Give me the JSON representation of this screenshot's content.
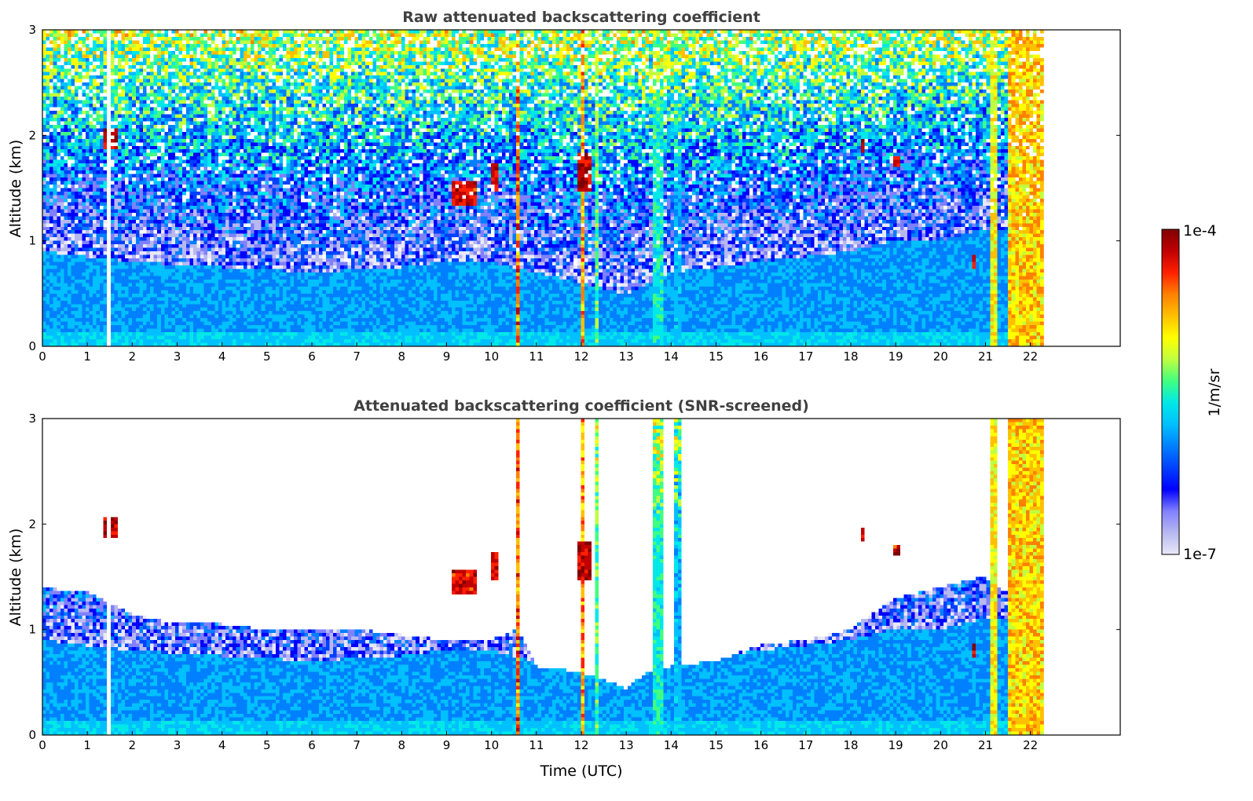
{
  "chart_data": [
    {
      "type": "heatmap",
      "title": "Raw attenuated backscattering coefficient",
      "xlabel": "",
      "ylabel": "Altitude (km)",
      "xlim": [
        0,
        24
      ],
      "ylim": [
        0,
        3
      ],
      "xticks": [
        "0",
        "1",
        "2",
        "3",
        "4",
        "5",
        "6",
        "7",
        "8",
        "9",
        "10",
        "11",
        "12",
        "13",
        "14",
        "15",
        "16",
        "17",
        "18",
        "19",
        "20",
        "21",
        "22"
      ],
      "yticks": [
        "0",
        "1",
        "2",
        "3"
      ],
      "data_end_time": 22.3,
      "gaps": [
        {
          "from": 1.45,
          "to": 1.55
        }
      ],
      "value_scale": "log",
      "value_range": [
        1e-07,
        0.0001
      ],
      "features": [
        {
          "kind": "boundary_layer",
          "x": [
            0,
            2,
            4,
            6,
            8,
            9,
            10,
            11,
            12,
            13,
            14,
            15,
            16,
            17,
            18,
            19,
            20,
            21,
            22.3
          ],
          "top_km": [
            0.9,
            0.8,
            0.75,
            0.7,
            0.75,
            0.8,
            0.8,
            0.7,
            0.6,
            0.5,
            0.7,
            0.75,
            0.8,
            0.85,
            0.9,
            1.0,
            1.0,
            1.1,
            1.1
          ]
        },
        {
          "kind": "cloud_column",
          "x_from": 10.55,
          "x_to": 10.65,
          "intensity": 0.9
        },
        {
          "kind": "cloud_column",
          "x_from": 12.0,
          "x_to": 12.1,
          "intensity": 0.85
        },
        {
          "kind": "cloud_column",
          "x_from": 12.3,
          "x_to": 12.4,
          "intensity": 0.6
        },
        {
          "kind": "cloud_column",
          "x_from": 13.6,
          "x_to": 13.85,
          "intensity": 0.55
        },
        {
          "kind": "cloud_column",
          "x_from": 14.1,
          "x_to": 14.2,
          "intensity": 0.45
        },
        {
          "kind": "cloud_column",
          "x_from": 21.1,
          "x_to": 21.3,
          "intensity": 0.75
        },
        {
          "kind": "cloud_column",
          "x_from": 21.5,
          "x_to": 22.3,
          "intensity": 0.8
        },
        {
          "kind": "cloud_patch",
          "x": 1.5,
          "y_km": 1.95,
          "w": 0.3,
          "h": 0.2,
          "intensity": 1.0
        },
        {
          "kind": "cloud_patch",
          "x": 9.4,
          "y_km": 1.45,
          "w": 0.5,
          "h": 0.25,
          "intensity": 0.95
        },
        {
          "kind": "cloud_patch",
          "x": 10.05,
          "y_km": 1.6,
          "w": 0.15,
          "h": 0.25,
          "intensity": 0.95
        },
        {
          "kind": "cloud_patch",
          "x": 12.05,
          "y_km": 1.65,
          "w": 0.3,
          "h": 0.35,
          "intensity": 1.0
        },
        {
          "kind": "cloud_patch",
          "x": 18.3,
          "y_km": 1.9,
          "w": 0.1,
          "h": 0.12,
          "intensity": 1.0
        },
        {
          "kind": "cloud_patch",
          "x": 19.05,
          "y_km": 1.75,
          "w": 0.15,
          "h": 0.12,
          "intensity": 0.95
        },
        {
          "kind": "cloud_patch",
          "x": 20.75,
          "y_km": 0.8,
          "w": 0.08,
          "h": 0.15,
          "intensity": 1.0
        }
      ]
    },
    {
      "type": "heatmap",
      "title": "Attenuated backscattering coefficient (SNR-screened)",
      "xlabel": "Time (UTC)",
      "ylabel": "Altitude (km)",
      "xlim": [
        0,
        24
      ],
      "ylim": [
        0,
        3
      ],
      "xticks": [
        "0",
        "1",
        "2",
        "3",
        "4",
        "5",
        "6",
        "7",
        "8",
        "9",
        "10",
        "11",
        "12",
        "13",
        "14",
        "15",
        "16",
        "17",
        "18",
        "19",
        "20",
        "21",
        "22"
      ],
      "yticks": [
        "0",
        "1",
        "2",
        "3"
      ],
      "data_end_time": 22.3,
      "gaps": [
        {
          "from": 1.45,
          "to": 1.55
        }
      ],
      "value_scale": "log",
      "value_range": [
        1e-07,
        0.0001
      ],
      "screen_top_km": {
        "x": [
          0,
          1,
          2,
          3,
          4,
          5,
          6,
          7,
          8,
          9,
          10,
          10.6,
          11,
          12,
          13,
          13.5,
          14,
          15,
          16,
          17,
          18,
          19,
          20,
          21,
          22.3
        ],
        "y": [
          1.4,
          1.35,
          1.15,
          1.05,
          1.05,
          1.0,
          1.0,
          1.0,
          0.95,
          0.9,
          0.9,
          1.0,
          0.65,
          0.6,
          0.45,
          0.6,
          0.65,
          0.7,
          0.85,
          0.9,
          1.0,
          1.3,
          1.4,
          1.5,
          1.1
        ]
      }
    }
  ],
  "colorbar": {
    "label": "1/m/sr",
    "max_label": "1e-4",
    "min_label": "1e-7",
    "colors": [
      "#e8e8f8",
      "#b8b8f0",
      "#8080ff",
      "#0000ff",
      "#0040ff",
      "#0080ff",
      "#00c0ff",
      "#00e8e8",
      "#40ff80",
      "#c0ff40",
      "#ffff00",
      "#ffc000",
      "#ff8000",
      "#ff2000",
      "#c00000",
      "#800000"
    ]
  }
}
